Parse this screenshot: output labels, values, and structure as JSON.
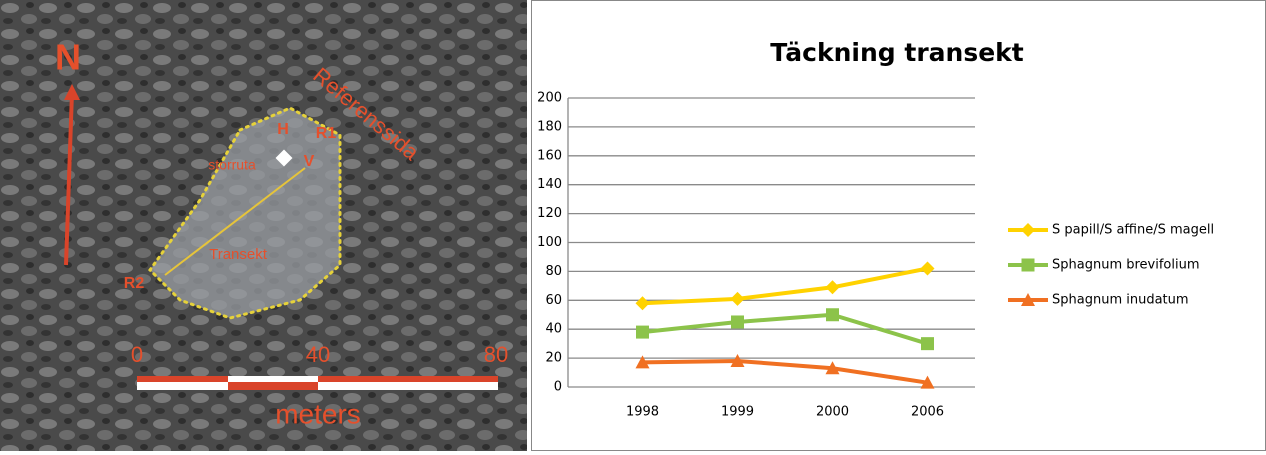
{
  "map_labels": {
    "north": "N",
    "reference": "Referenssida",
    "h": "H",
    "r1": "R1",
    "plot": "storruta",
    "v": "V",
    "transect": "Transekt",
    "r2": "R2",
    "scale_0": "0",
    "scale_40": "40",
    "scale_80": "80",
    "unit": "meters"
  },
  "chart_data": {
    "type": "line",
    "title": "Täckning transekt",
    "categories": [
      "1998",
      "1999",
      "2000",
      "2006"
    ],
    "series": [
      {
        "name": "S papill/S affine/S magell",
        "color": "#ffd200",
        "marker": "diamond",
        "values": [
          58,
          61,
          69,
          82
        ]
      },
      {
        "name": "Sphagnum brevifolium",
        "color": "#8cc34a",
        "marker": "square",
        "values": [
          38,
          45,
          50,
          30
        ]
      },
      {
        "name": "Sphagnum inudatum",
        "color": "#f07022",
        "marker": "triangle",
        "values": [
          17,
          18,
          13,
          3
        ]
      }
    ],
    "ylim": [
      0,
      200
    ],
    "yticks": [
      0,
      20,
      40,
      60,
      80,
      100,
      120,
      140,
      160,
      180,
      200
    ],
    "grid": true,
    "legend": "right"
  }
}
